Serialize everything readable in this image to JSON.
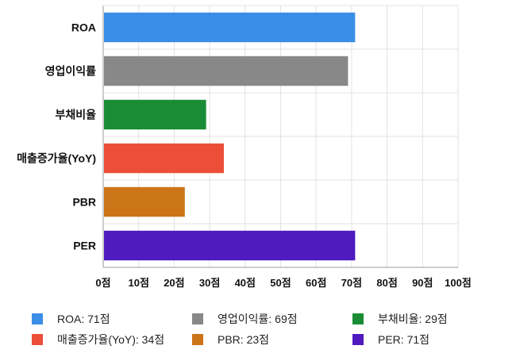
{
  "chart_data": {
    "type": "bar",
    "orientation": "horizontal",
    "categories": [
      "ROA",
      "영업이익률",
      "부채비율",
      "매출증가율(YoY)",
      "PBR",
      "PER"
    ],
    "values": [
      71,
      69,
      29,
      34,
      23,
      71
    ],
    "colors": [
      "#3a8ee6",
      "#888888",
      "#1a8c35",
      "#ec4e38",
      "#cc7418",
      "#4f1bbf"
    ],
    "xlim": [
      0,
      100
    ],
    "xticks": [
      0,
      10,
      20,
      30,
      40,
      50,
      60,
      70,
      80,
      90,
      100
    ],
    "xtick_labels": [
      "0점",
      "10점",
      "20점",
      "30점",
      "40점",
      "50점",
      "60점",
      "70점",
      "80점",
      "90점",
      "100점"
    ],
    "grid": true,
    "legend_position": "bottom",
    "legend": [
      "ROA: 71점",
      "매출증가율(YoY): 34점",
      "영업이익률: 69점",
      "PBR: 23점",
      "부채비율: 29점",
      "PER: 71점"
    ]
  }
}
